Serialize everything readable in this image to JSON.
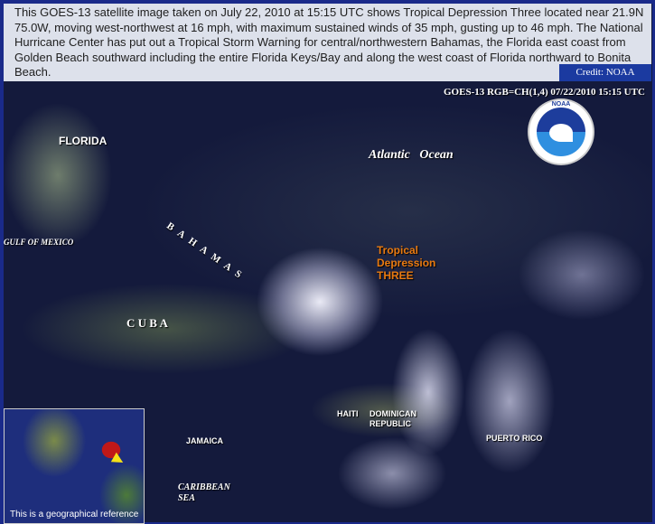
{
  "caption": {
    "text": "This GOES-13 satellite image taken on July 22, 2010 at 15:15 UTC shows Tropical Depression Three located near 21.9N 75.0W, moving west-northwest at 16 mph, with maximum sustained winds of 35 mph, gusting up to 46 mph. The National Hurricane Center has put out a Tropical Storm Warning for central/northwestern Bahamas, the Florida east coast from Golden Beach southward including the entire Florida Keys/Bay and along the west coast of Florida northward to Bonita Beach.",
    "credit": "Credit: NOAA"
  },
  "image": {
    "header": "GOES-13 RGB=CH(1,4)  07/22/2010 15:15 UTC",
    "logo": "NOAA",
    "labels": {
      "florida": "FLORIDA",
      "atlantic": "Atlantic   Ocean",
      "bahamas": "BAHAMAS",
      "gulf": "GULF OF MEXICO",
      "cuba": "C U B A",
      "storm": "Tropical\nDepression\nTHREE",
      "haiti": "HAITI",
      "dominican": "DOMINICAN\nREPUBLIC",
      "jamaica": "JAMAICA",
      "puerto_rico": "PUERTO RICO",
      "caribbean": "CARIBBEAN\nSEA"
    },
    "storm_label_color": "#e87a10",
    "inset_caption": "This is a geographical reference"
  }
}
